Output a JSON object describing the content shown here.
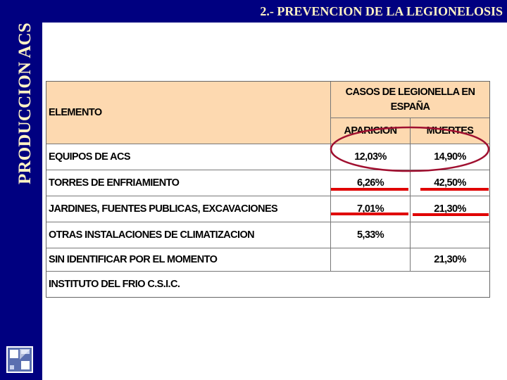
{
  "sidebar": {
    "title": "PRODUCCION ACS"
  },
  "header": {
    "title": "2.- PREVENCION DE LA LEGIONELOSIS"
  },
  "table": {
    "col_element": "ELEMENTO",
    "group_header": "CASOS DE LEGIONELLA EN ESPAÑA",
    "col_aparicion": "APARICION",
    "col_muertes": "MUERTES",
    "rows": [
      {
        "element": "EQUIPOS DE ACS",
        "aparicion": "12,03%",
        "muertes": "14,90%"
      },
      {
        "element": "TORRES DE ENFRIAMIENTO",
        "aparicion": "6,26%",
        "muertes": "42,50%"
      },
      {
        "element": "JARDINES, FUENTES PUBLICAS, EXCAVACIONES",
        "aparicion": "7,01%",
        "muertes": "21,30%"
      },
      {
        "element": "OTRAS INSTALACIONES DE CLIMATIZACION",
        "aparicion": "5,33%",
        "muertes": ""
      },
      {
        "element": "SIN IDENTIFICAR POR EL MOMENTO",
        "aparicion": "",
        "muertes": "21,30%"
      }
    ],
    "source": "INSTITUTO DEL FRIO C.S.I.C."
  },
  "colors": {
    "brand_navy": "#000080",
    "title_text": "#fff3c4",
    "header_fill": "#fdd9b0",
    "annotation_red": "#e00000",
    "oval_stroke": "#a01030"
  }
}
